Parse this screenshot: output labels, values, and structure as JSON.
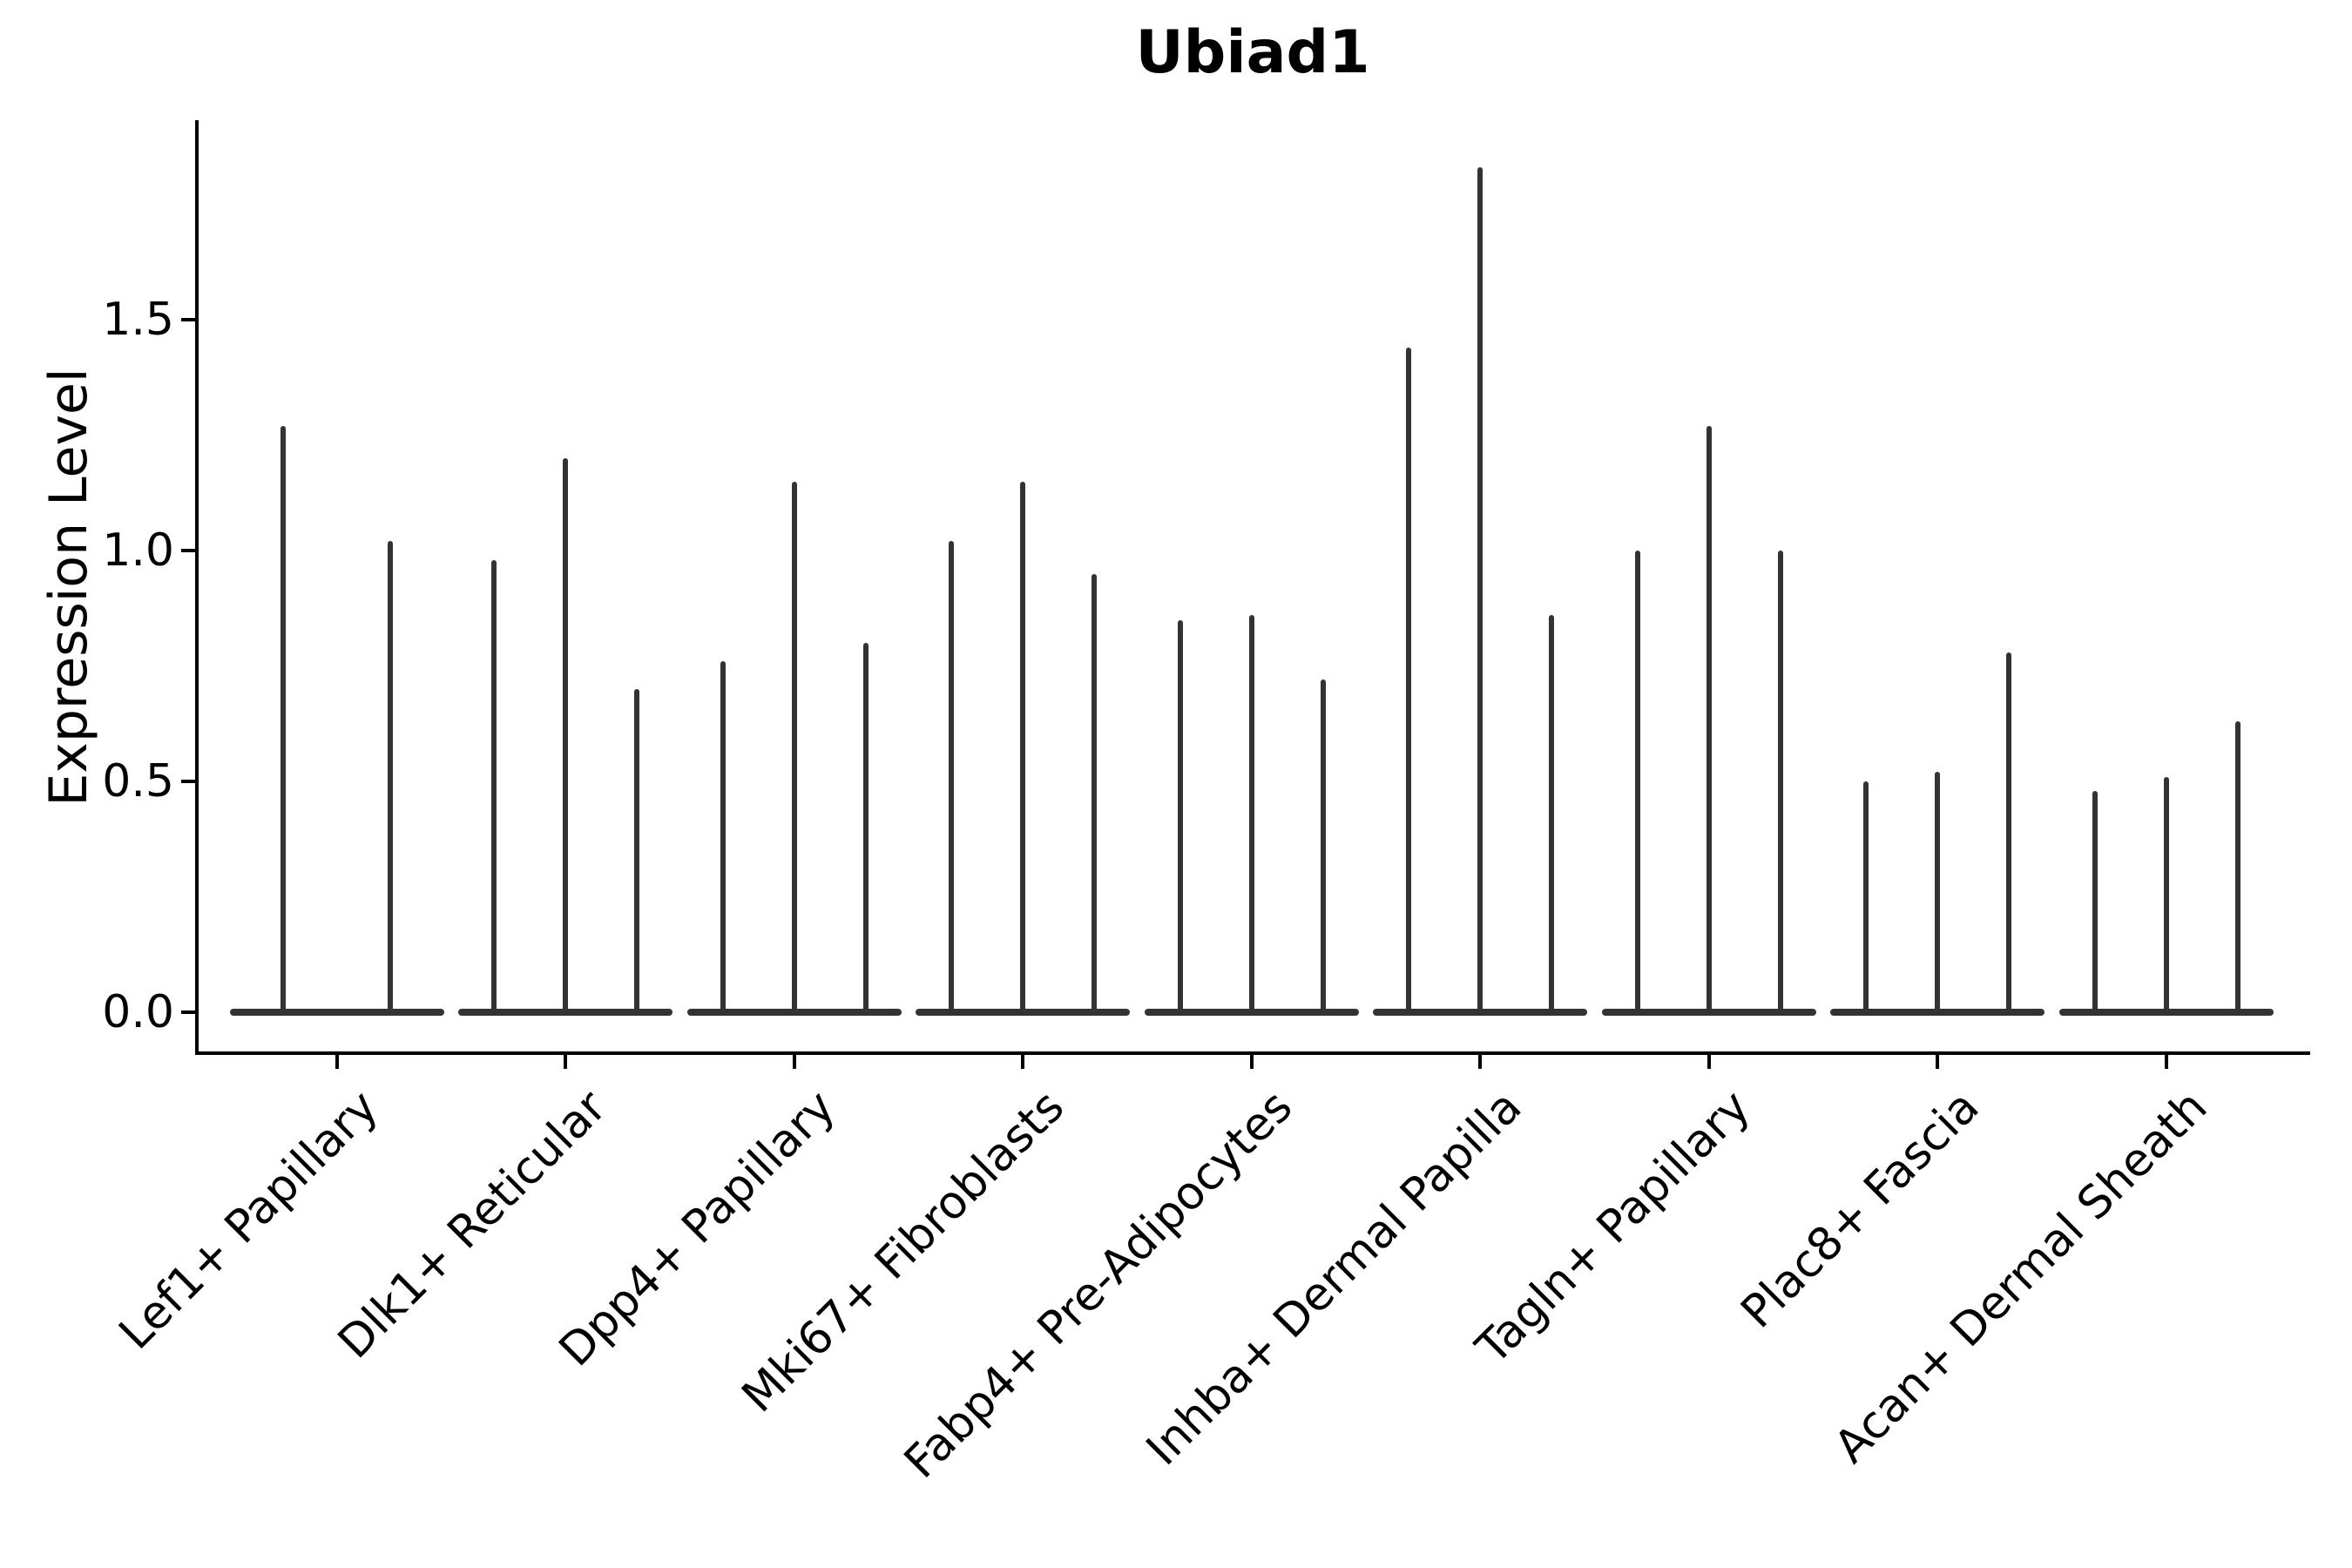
{
  "figure": {
    "title": "Ubiad1",
    "ylabel": "Expression Level"
  },
  "chart_data": {
    "type": "violin",
    "title": "Ubiad1",
    "xlabel": "",
    "ylabel": "Expression Level",
    "ylim": [
      -0.09,
      1.94
    ],
    "yticks": [
      0.0,
      0.5,
      1.0,
      1.5
    ],
    "ytick_labels": [
      "0.0",
      "0.5",
      "1.0",
      "1.5"
    ],
    "grid": false,
    "legend": "none",
    "x_tick_rotation": 45,
    "violin_color": "#333333",
    "violin_shape_note": "each violin is a narrow spike from 0 up to its max expression with the density bulk flattened at 0",
    "categories": [
      "Lef1+ Papillary",
      "Dlk1+ Reticular",
      "Dpp4+ Papillary",
      "Mki67+ Fibroblasts",
      "Fabp4+ Pre-Adipocytes",
      "Inhba+ Dermal Papilla",
      "Tagln+ Papillary",
      "Plac8+ Fascia",
      "Acan+ Dermal Sheath"
    ],
    "groups": [
      {
        "category": "Lef1+ Papillary",
        "spike_maxima": [
          1.27,
          1.02
        ]
      },
      {
        "category": "Dlk1+ Reticular",
        "spike_maxima": [
          0.98,
          1.2,
          0.7
        ]
      },
      {
        "category": "Dpp4+ Papillary",
        "spike_maxima": [
          0.76,
          1.15,
          0.8
        ]
      },
      {
        "category": "Mki67+ Fibroblasts",
        "spike_maxima": [
          1.02,
          1.15,
          0.95
        ]
      },
      {
        "category": "Fabp4+ Pre-Adipocytes",
        "spike_maxima": [
          0.85,
          0.86,
          0.72
        ]
      },
      {
        "category": "Inhba+ Dermal Papilla",
        "spike_maxima": [
          1.44,
          1.83,
          0.86
        ]
      },
      {
        "category": "Tagln+ Papillary",
        "spike_maxima": [
          1.0,
          1.27,
          1.0
        ]
      },
      {
        "category": "Plac8+ Fascia",
        "spike_maxima": [
          0.5,
          0.52,
          0.78
        ]
      },
      {
        "category": "Acan+ Dermal Sheath",
        "spike_maxima": [
          0.48,
          0.51,
          0.63
        ]
      }
    ]
  }
}
